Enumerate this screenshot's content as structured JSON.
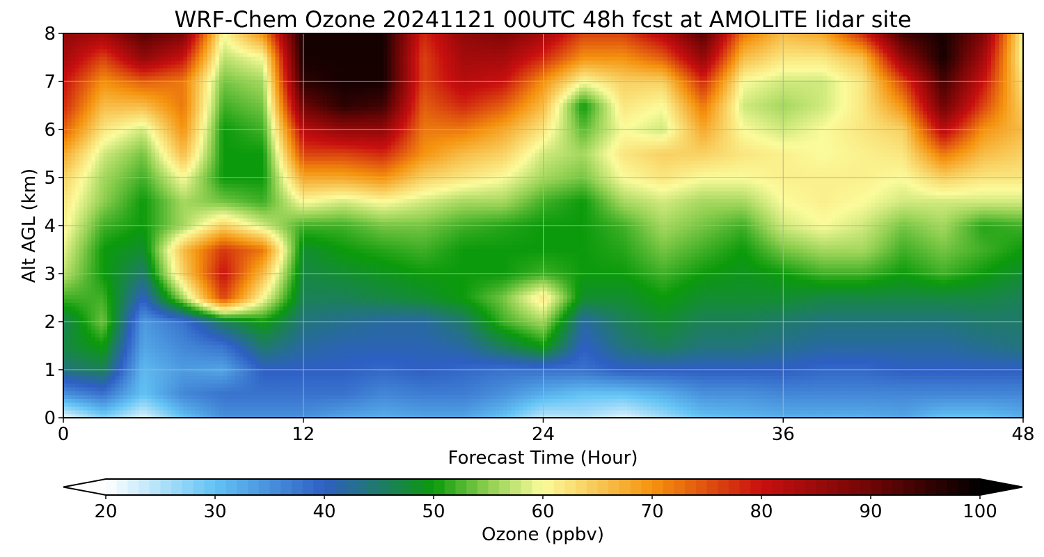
{
  "chart_data": {
    "type": "heatmap",
    "title": "WRF-Chem Ozone  20241121 00UTC 48h fcst at AMOLITE lidar site",
    "xlabel": "Forecast Time (Hour)",
    "ylabel": "Alt AGL (km)",
    "xlim": [
      0,
      48
    ],
    "ylim": [
      0,
      8
    ],
    "x_ticks": [
      0,
      12,
      24,
      36,
      48
    ],
    "y_ticks": [
      0,
      1,
      2,
      3,
      4,
      5,
      6,
      7,
      8
    ],
    "grid": true,
    "colorbar": {
      "label": "Ozone  (ppbv)",
      "range": [
        20,
        100
      ],
      "ticks": [
        20,
        30,
        40,
        50,
        60,
        70,
        80,
        90,
        100
      ],
      "extend": "both",
      "stops": [
        {
          "v": 20,
          "c": "#ffffff"
        },
        {
          "v": 30,
          "c": "#63c3f4"
        },
        {
          "v": 40,
          "c": "#2e5fc4"
        },
        {
          "v": 45,
          "c": "#1f7a6a"
        },
        {
          "v": 50,
          "c": "#0b9a0b"
        },
        {
          "v": 55,
          "c": "#8fcf50"
        },
        {
          "v": 60,
          "c": "#fbfb9b"
        },
        {
          "v": 70,
          "c": "#f5930f"
        },
        {
          "v": 80,
          "c": "#c80f0f"
        },
        {
          "v": 90,
          "c": "#6e0505"
        },
        {
          "v": 100,
          "c": "#000000"
        }
      ]
    },
    "z_levels_km": [
      0,
      0.5,
      1,
      1.5,
      2,
      2.5,
      3,
      3.5,
      4,
      4.5,
      5,
      5.5,
      6,
      6.5,
      7,
      7.5,
      8
    ],
    "x_hours": [
      0,
      2,
      4,
      6,
      8,
      10,
      12,
      14,
      16,
      18,
      20,
      22,
      24,
      26,
      28,
      30,
      32,
      34,
      36,
      38,
      40,
      42,
      44,
      46,
      48
    ],
    "values_ppbv": [
      [
        21,
        35,
        44,
        47,
        46,
        52,
        57,
        59,
        61,
        62,
        64,
        68,
        74,
        78,
        80,
        84,
        86
      ],
      [
        28,
        38,
        46,
        50,
        54,
        52,
        50,
        50,
        52,
        55,
        56,
        58,
        62,
        66,
        70,
        76,
        84
      ],
      [
        22,
        30,
        31,
        33,
        34,
        40,
        45,
        48,
        50,
        50,
        52,
        54,
        58,
        66,
        74,
        86,
        92
      ],
      [
        30,
        36,
        34,
        36,
        38,
        56,
        64,
        66,
        56,
        56,
        60,
        66,
        70,
        72,
        72,
        80,
        88
      ],
      [
        35,
        38,
        33,
        38,
        46,
        76,
        80,
        77,
        64,
        54,
        50,
        50,
        50,
        52,
        54,
        57,
        60
      ],
      [
        35,
        38,
        40,
        45,
        50,
        60,
        66,
        72,
        58,
        52,
        50,
        50,
        52,
        54,
        56,
        60,
        70
      ],
      [
        35,
        38,
        40,
        42,
        44,
        46,
        47,
        48,
        52,
        60,
        68,
        76,
        82,
        90,
        96,
        98,
        98
      ],
      [
        33,
        38,
        40,
        41,
        43,
        46,
        48,
        50,
        52,
        58,
        68,
        76,
        86,
        96,
        98,
        98,
        98
      ],
      [
        32,
        36,
        39,
        41,
        42,
        47,
        49,
        51,
        54,
        60,
        70,
        78,
        86,
        94,
        98,
        98,
        98
      ],
      [
        33,
        37,
        40,
        41,
        42,
        48,
        50,
        52,
        54,
        58,
        64,
        70,
        72,
        74,
        76,
        76,
        78
      ],
      [
        33,
        37,
        39,
        42,
        45,
        50,
        50,
        50,
        52,
        56,
        62,
        66,
        72,
        78,
        82,
        84,
        86
      ],
      [
        30,
        35,
        38,
        46,
        52,
        54,
        50,
        50,
        51,
        56,
        60,
        64,
        68,
        74,
        80,
        84,
        88
      ],
      [
        24,
        32,
        38,
        50,
        56,
        62,
        52,
        50,
        50,
        52,
        56,
        58,
        62,
        66,
        70,
        78,
        84
      ],
      [
        25,
        30,
        38,
        40,
        42,
        48,
        50,
        50,
        50,
        50,
        54,
        56,
        53,
        50,
        60,
        70,
        76
      ],
      [
        22,
        30,
        40,
        44,
        46,
        48,
        50,
        51,
        52,
        56,
        60,
        62,
        60,
        62,
        64,
        70,
        76
      ],
      [
        26,
        32,
        40,
        46,
        48,
        50,
        52,
        54,
        56,
        58,
        62,
        64,
        58,
        60,
        64,
        74,
        82
      ],
      [
        30,
        35,
        40,
        44,
        46,
        48,
        50,
        52,
        54,
        56,
        60,
        64,
        68,
        72,
        78,
        86,
        92
      ],
      [
        31,
        35,
        40,
        44,
        46,
        48,
        49,
        50,
        52,
        56,
        60,
        62,
        60,
        58,
        60,
        66,
        72
      ],
      [
        32,
        36,
        40,
        43,
        45,
        48,
        50,
        54,
        58,
        60,
        61,
        61,
        58,
        56,
        58,
        62,
        66
      ],
      [
        32,
        36,
        39,
        42,
        44,
        47,
        52,
        56,
        60,
        61,
        61,
        60,
        60,
        58,
        58,
        62,
        68
      ],
      [
        32,
        36,
        39,
        42,
        44,
        47,
        52,
        56,
        58,
        60,
        61,
        61,
        62,
        62,
        62,
        66,
        78
      ],
      [
        33,
        36,
        40,
        42,
        44,
        47,
        50,
        52,
        54,
        58,
        60,
        62,
        64,
        70,
        76,
        86,
        94
      ],
      [
        30,
        36,
        40,
        42,
        44,
        47,
        52,
        54,
        56,
        58,
        64,
        72,
        82,
        90,
        94,
        98,
        98
      ],
      [
        30,
        36,
        40,
        43,
        45,
        47,
        50,
        52,
        51,
        58,
        62,
        66,
        70,
        76,
        80,
        84,
        88
      ],
      [
        32,
        36,
        40,
        44,
        45,
        46,
        48,
        50,
        52,
        58,
        62,
        64,
        66,
        64,
        62,
        60,
        60
      ]
    ]
  }
}
